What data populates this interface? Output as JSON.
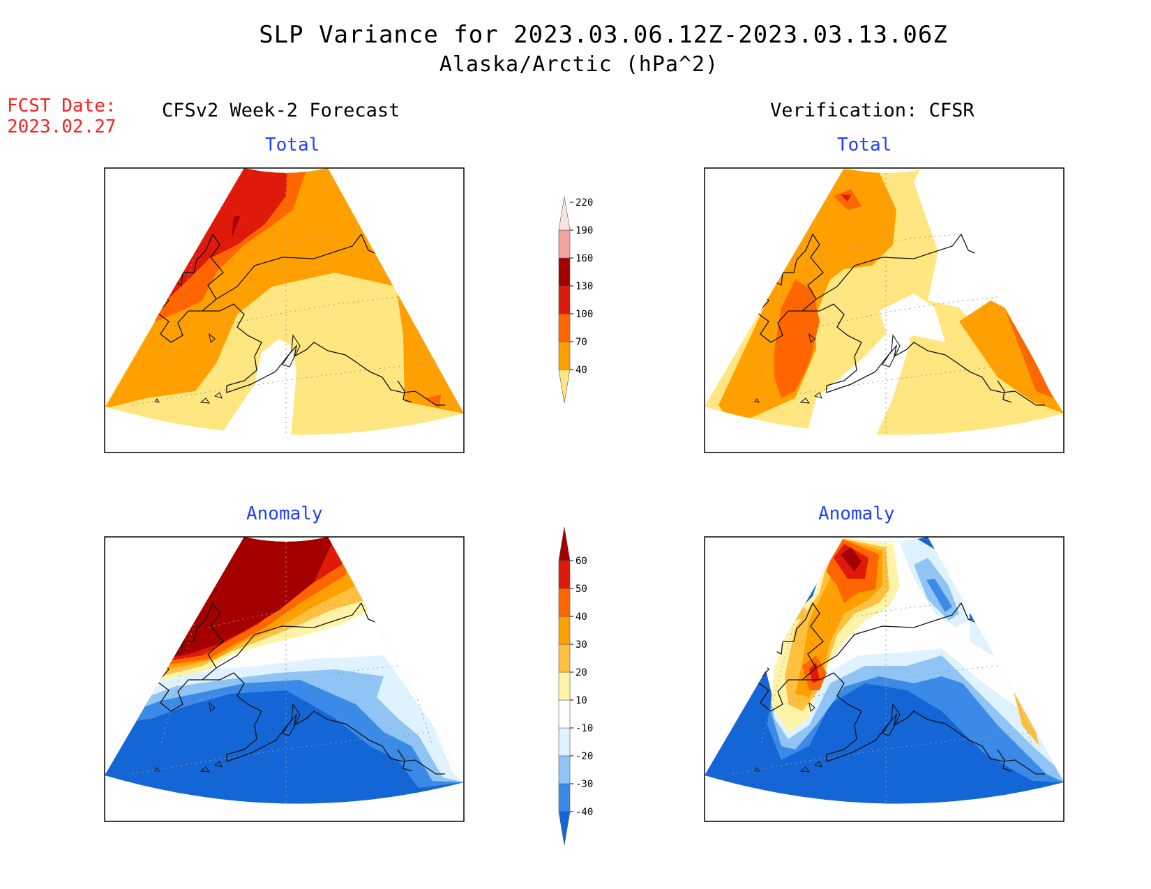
{
  "title": "SLP Variance for 2023.03.06.12Z-2023.03.13.06Z",
  "subtitle": "Alaska/Arctic (hPa^2)",
  "fcst_date": [
    "FCST Date:",
    "2023.02.27"
  ],
  "left_header": "CFSv2 Week-2 Forecast",
  "right_header": "Verification: CFSR",
  "panels": {
    "top_left": "Total",
    "top_right": "Total",
    "bottom_left": "Anomaly",
    "bottom_right": "Anomaly"
  },
  "colorbar_total": {
    "labels": [
      "40",
      "70",
      "100",
      "130",
      "160",
      "190",
      "220"
    ],
    "colors": [
      "#ffe680",
      "#ffa000",
      "#ff6600",
      "#e01a0a",
      "#a50000",
      "#f4a0a0",
      "#fde2e2"
    ]
  },
  "colorbar_anomaly": {
    "labels": [
      "-40",
      "-30",
      "-20",
      "-10",
      "10",
      "20",
      "30",
      "40",
      "50",
      "60"
    ],
    "colors": [
      "#1466d6",
      "#3b8ae8",
      "#90c4f4",
      "#dff2ff",
      "#ffffff",
      "#fff3a8",
      "#ffc040",
      "#ffa000",
      "#ff6600",
      "#e01a0a",
      "#a50000"
    ]
  },
  "palette": {
    "yellow": "#ffe680",
    "orange": "#ffa000",
    "dark_orange": "#ff6600",
    "red": "#e01a0a",
    "dark_red": "#a50000",
    "blue": "#1466d6",
    "mid_blue": "#3b8ae8",
    "light_blue": "#90c4f4",
    "pale_blue": "#dff2ff"
  }
}
